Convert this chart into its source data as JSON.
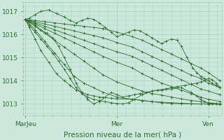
{
  "background_color": "#cce8dc",
  "grid_color": "#aaccbb",
  "line_color": "#2d6e2d",
  "marker_color": "#2d6e2d",
  "ylim": [
    1012.5,
    1017.4
  ],
  "yticks": [
    1013,
    1014,
    1015,
    1016,
    1017
  ],
  "xlabel": "Pression niveau de la mer( hPa )",
  "xlabel_fontsize": 7.5,
  "tick_fontsize": 6.5,
  "xtick_labels": [
    "MarJeu",
    "Mer",
    "Ven"
  ],
  "xtick_positions": [
    0.0,
    0.47,
    0.94
  ],
  "series": [
    {
      "x": [
        0.0,
        0.05,
        0.1,
        0.15,
        0.2,
        0.25,
        0.3,
        0.35,
        0.4,
        0.47,
        0.55,
        0.6,
        0.65,
        0.7,
        0.75,
        0.8,
        0.85,
        0.9,
        0.94,
        1.0
      ],
      "y": [
        1016.65,
        1016.6,
        1016.55,
        1016.5,
        1016.45,
        1016.4,
        1016.35,
        1016.3,
        1016.25,
        1016.1,
        1015.9,
        1015.75,
        1015.55,
        1015.35,
        1015.15,
        1014.95,
        1014.75,
        1014.55,
        1014.35,
        1014.0
      ]
    },
    {
      "x": [
        0.0,
        0.05,
        0.1,
        0.15,
        0.2,
        0.25,
        0.3,
        0.35,
        0.4,
        0.47,
        0.55,
        0.6,
        0.65,
        0.7,
        0.75,
        0.8,
        0.85,
        0.9,
        0.94,
        1.0
      ],
      "y": [
        1016.65,
        1016.55,
        1016.45,
        1016.35,
        1016.25,
        1016.15,
        1016.05,
        1015.95,
        1015.85,
        1015.65,
        1015.45,
        1015.25,
        1015.05,
        1014.85,
        1014.65,
        1014.45,
        1014.25,
        1014.1,
        1013.9,
        1013.7
      ]
    },
    {
      "x": [
        0.0,
        0.05,
        0.1,
        0.15,
        0.2,
        0.25,
        0.3,
        0.35,
        0.4,
        0.47,
        0.55,
        0.6,
        0.65,
        0.7,
        0.75,
        0.8,
        0.85,
        0.9,
        0.94,
        1.0
      ],
      "y": [
        1016.65,
        1016.5,
        1016.35,
        1016.2,
        1016.05,
        1015.9,
        1015.75,
        1015.6,
        1015.45,
        1015.25,
        1015.05,
        1014.85,
        1014.65,
        1014.45,
        1014.25,
        1014.05,
        1013.85,
        1013.65,
        1013.55,
        1013.4
      ]
    },
    {
      "x": [
        0.0,
        0.05,
        0.1,
        0.15,
        0.2,
        0.25,
        0.3,
        0.35,
        0.4,
        0.47,
        0.55,
        0.6,
        0.65,
        0.7,
        0.75,
        0.8,
        0.85,
        0.9,
        0.94,
        1.0
      ],
      "y": [
        1016.65,
        1016.45,
        1016.25,
        1016.05,
        1015.85,
        1015.65,
        1015.45,
        1015.25,
        1015.05,
        1014.8,
        1014.55,
        1014.3,
        1014.1,
        1013.9,
        1013.75,
        1013.6,
        1013.45,
        1013.3,
        1013.2,
        1013.1
      ]
    },
    {
      "x": [
        0.0,
        0.05,
        0.1,
        0.15,
        0.2,
        0.25,
        0.3,
        0.35,
        0.4,
        0.47,
        0.55,
        0.6,
        0.65,
        0.7,
        0.75,
        0.8,
        0.85,
        0.9,
        0.94,
        1.0
      ],
      "y": [
        1016.65,
        1016.35,
        1016.05,
        1015.75,
        1015.45,
        1015.15,
        1014.85,
        1014.55,
        1014.25,
        1013.95,
        1013.7,
        1013.55,
        1013.45,
        1013.38,
        1013.3,
        1013.22,
        1013.15,
        1013.1,
        1013.05,
        1013.0
      ]
    },
    {
      "x": [
        0.0,
        0.05,
        0.1,
        0.15,
        0.2,
        0.25,
        0.3,
        0.35,
        0.4,
        0.47,
        0.55,
        0.6,
        0.65,
        0.7,
        0.75,
        0.8,
        0.85,
        0.9,
        0.94,
        1.0
      ],
      "y": [
        1016.65,
        1016.2,
        1015.7,
        1015.2,
        1014.7,
        1014.2,
        1013.9,
        1013.7,
        1013.5,
        1013.3,
        1013.2,
        1013.15,
        1013.1,
        1013.08,
        1013.05,
        1013.03,
        1013.01,
        1013.0,
        1012.99,
        1012.98
      ]
    },
    {
      "x": [
        0.0,
        0.02,
        0.05,
        0.08,
        0.12,
        0.16,
        0.2,
        0.23,
        0.26,
        0.29,
        0.32,
        0.35,
        0.38,
        0.41,
        0.44,
        0.47,
        0.5,
        0.53,
        0.56,
        0.59,
        0.62,
        0.65,
        0.68,
        0.7,
        0.72,
        0.75,
        0.78,
        0.8,
        0.83,
        0.86,
        0.88,
        0.9,
        0.92,
        0.94,
        0.96,
        0.98,
        1.0
      ],
      "y": [
        1016.65,
        1016.7,
        1016.85,
        1017.0,
        1017.05,
        1016.9,
        1016.75,
        1016.6,
        1016.5,
        1016.6,
        1016.7,
        1016.65,
        1016.5,
        1016.3,
        1016.1,
        1015.9,
        1016.0,
        1016.1,
        1016.2,
        1016.15,
        1016.0,
        1015.85,
        1015.7,
        1015.6,
        1015.7,
        1015.8,
        1015.75,
        1015.5,
        1015.0,
        1014.55,
        1014.35,
        1014.2,
        1014.1,
        1014.0,
        1013.9,
        1013.8,
        1013.7
      ]
    },
    {
      "x": [
        0.0,
        0.02,
        0.05,
        0.08,
        0.11,
        0.14,
        0.17,
        0.2,
        0.23,
        0.26,
        0.29,
        0.32,
        0.35,
        0.38,
        0.41,
        0.44,
        0.47,
        0.5,
        0.53,
        0.56,
        0.59,
        0.62,
        0.65,
        0.68,
        0.72,
        0.75,
        0.78,
        0.82,
        0.85,
        0.88,
        0.9,
        0.92,
        0.94,
        0.96,
        0.98,
        1.0
      ],
      "y": [
        1016.65,
        1016.55,
        1016.4,
        1016.2,
        1016.05,
        1015.85,
        1015.5,
        1015.0,
        1014.5,
        1013.9,
        1013.5,
        1013.2,
        1013.0,
        1013.1,
        1013.3,
        1013.5,
        1013.4,
        1013.3,
        1013.35,
        1013.4,
        1013.45,
        1013.5,
        1013.55,
        1013.6,
        1013.65,
        1013.7,
        1013.75,
        1013.8,
        1013.85,
        1013.9,
        1013.95,
        1014.0,
        1014.1,
        1014.05,
        1013.9,
        1013.7
      ]
    },
    {
      "x": [
        0.0,
        0.02,
        0.05,
        0.08,
        0.11,
        0.14,
        0.17,
        0.2,
        0.23,
        0.26,
        0.29,
        0.32,
        0.35,
        0.38,
        0.41,
        0.44,
        0.47,
        0.5,
        0.53,
        0.56,
        0.6,
        0.65,
        0.7,
        0.75,
        0.8,
        0.85,
        0.88,
        0.9,
        0.92,
        0.94,
        0.96,
        0.98,
        1.0
      ],
      "y": [
        1016.65,
        1016.4,
        1016.1,
        1015.8,
        1015.5,
        1015.2,
        1014.85,
        1014.5,
        1014.1,
        1013.7,
        1013.45,
        1013.3,
        1013.2,
        1013.15,
        1013.1,
        1013.05,
        1013.02,
        1013.0,
        1013.05,
        1013.2,
        1013.4,
        1013.55,
        1013.6,
        1013.65,
        1013.7,
        1013.5,
        1013.35,
        1013.2,
        1013.1,
        1013.05,
        1013.02,
        1013.01,
        1013.0
      ]
    },
    {
      "x": [
        0.0,
        0.02,
        0.05,
        0.08,
        0.12,
        0.16,
        0.2,
        0.23,
        0.26,
        0.29,
        0.32,
        0.35,
        0.38,
        0.4,
        0.44,
        0.47,
        0.55,
        0.6,
        0.65,
        0.7,
        0.75,
        0.8,
        0.85,
        0.9,
        0.94,
        0.96,
        0.98,
        1.0
      ],
      "y": [
        1016.65,
        1016.3,
        1015.8,
        1015.3,
        1014.8,
        1014.3,
        1014.0,
        1013.8,
        1013.6,
        1013.5,
        1013.4,
        1013.35,
        1013.3,
        1013.28,
        1013.25,
        1013.22,
        1013.2,
        1013.15,
        1013.1,
        1013.05,
        1013.02,
        1013.01,
        1013.0,
        1013.0,
        1013.0,
        1013.0,
        1013.0,
        1013.0
      ]
    }
  ]
}
